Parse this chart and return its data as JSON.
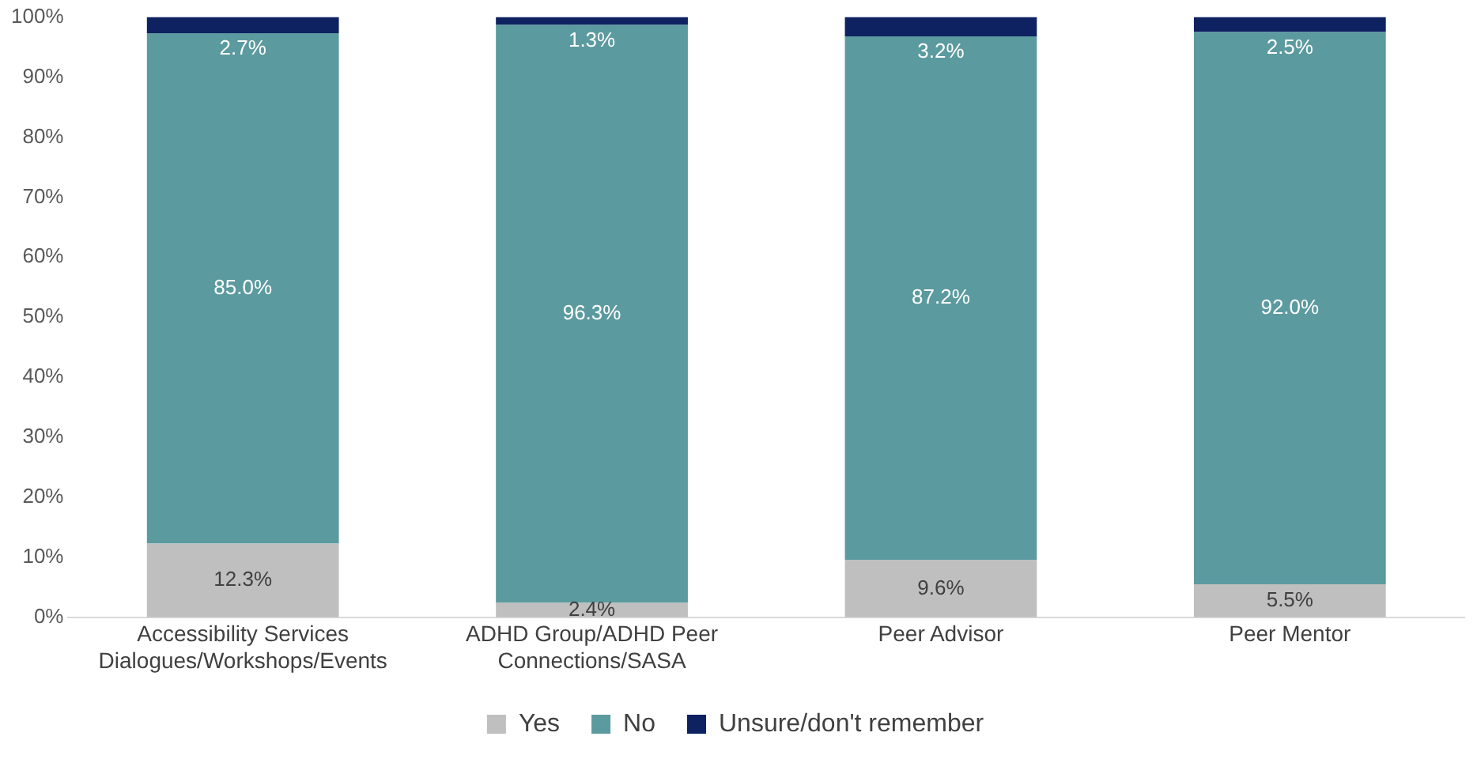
{
  "chart_data": {
    "type": "bar",
    "stacked": true,
    "categories": [
      "Accessibility Services Dialogues/Workshops/Events",
      "ADHD Group/ADHD Peer Connections/SASA",
      "Peer Advisor",
      "Peer Mentor"
    ],
    "series": [
      {
        "name": "Yes",
        "color": "#bfbfbf",
        "values": [
          12.3,
          2.4,
          9.6,
          5.5
        ],
        "value_labels": [
          "12.3%",
          "2.4%",
          "9.6%",
          "5.5%"
        ]
      },
      {
        "name": "No",
        "color": "#5b9a9f",
        "values": [
          85.0,
          96.3,
          87.2,
          92.0
        ],
        "value_labels": [
          "85.0%",
          "96.3%",
          "87.2%",
          "92.0%"
        ]
      },
      {
        "name": "Unsure/don't remember",
        "color": "#0e2160",
        "values": [
          2.7,
          1.3,
          3.2,
          2.5
        ],
        "value_labels": [
          "2.7%",
          "1.3%",
          "3.2%",
          "2.5%"
        ]
      }
    ],
    "ylim": [
      0,
      100
    ],
    "yticks": [
      {
        "value": 0,
        "label": "0%"
      },
      {
        "value": 10,
        "label": "10%"
      },
      {
        "value": 20,
        "label": "20%"
      },
      {
        "value": 30,
        "label": "30%"
      },
      {
        "value": 40,
        "label": "40%"
      },
      {
        "value": 50,
        "label": "50%"
      },
      {
        "value": 60,
        "label": "60%"
      },
      {
        "value": 70,
        "label": "70%"
      },
      {
        "value": 80,
        "label": "80%"
      },
      {
        "value": 90,
        "label": "90%"
      },
      {
        "value": 100,
        "label": "100%"
      }
    ],
    "grid": false,
    "legend": "bottom"
  }
}
